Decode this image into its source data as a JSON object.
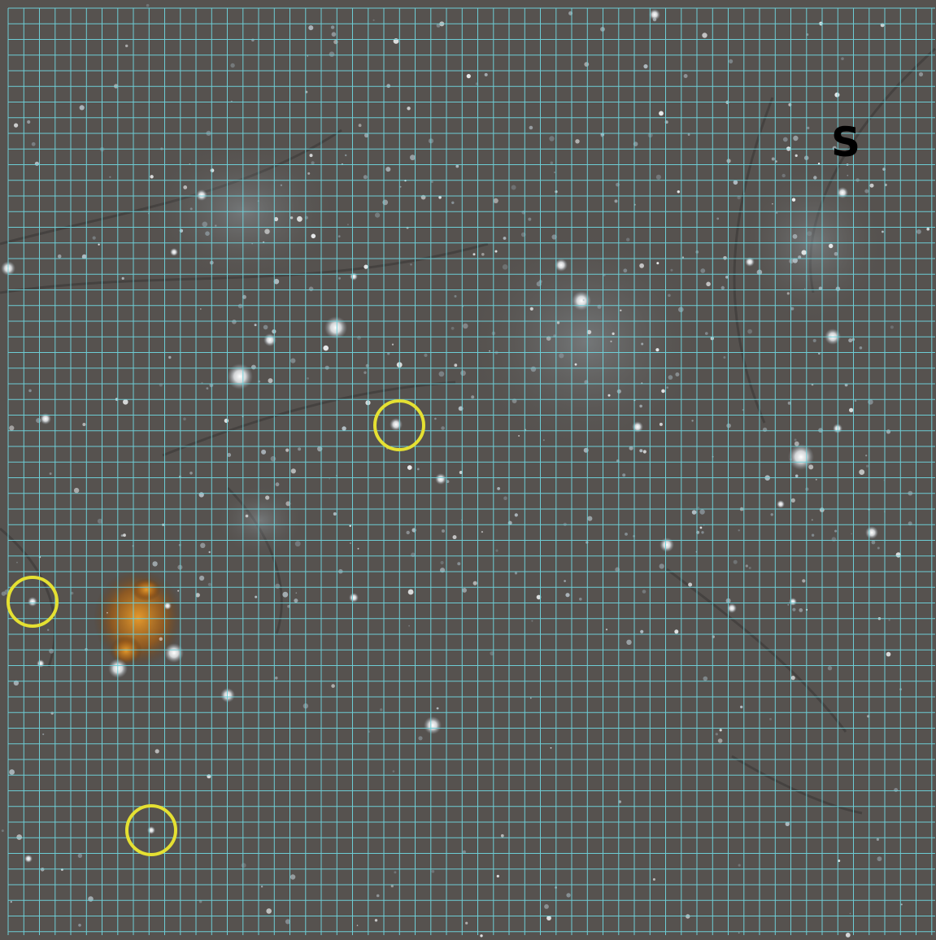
{
  "image": {
    "kind": "microscope field of view with measurement grid overlay",
    "background_color": "#56524f",
    "grid_color": "#6fd3dc",
    "marker_color": "#e5e032",
    "colored_debris_color": "#c87a1e",
    "highlight_color": "#ffffff"
  },
  "annotations": {
    "corner_label": "S"
  }
}
